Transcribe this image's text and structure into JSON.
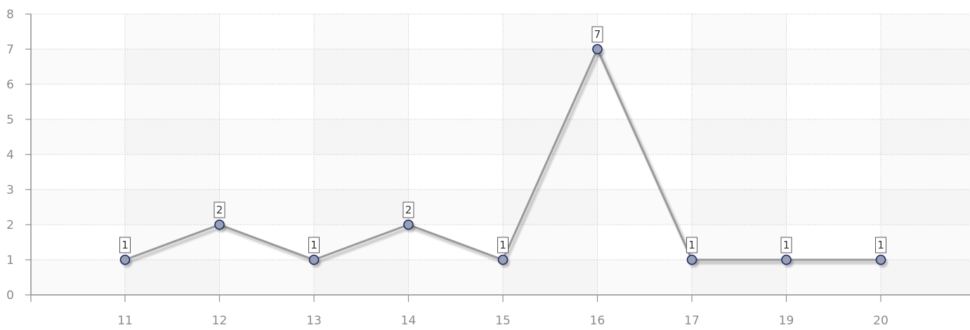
{
  "chart_data": {
    "type": "line",
    "categories": [
      "11",
      "12",
      "13",
      "14",
      "15",
      "16",
      "17",
      "19",
      "20"
    ],
    "series": [
      {
        "values": [
          1,
          2,
          1,
          2,
          1,
          7,
          1,
          1,
          1
        ],
        "color": "#9a9a9a"
      }
    ],
    "data_labels": true,
    "ylim": [
      0,
      8
    ],
    "yticks": [
      0,
      1,
      2,
      3,
      4,
      5,
      6,
      7,
      8
    ],
    "grid": true,
    "legend": "none",
    "colors": {
      "line": "#9a9a9a",
      "marker_fill": "#9aa0b4",
      "marker_stroke": "#1c2a6b",
      "grid": "#c8c8c8",
      "axis": "#8f8f8f",
      "band_light": "#fafafa",
      "band_dark": "#f3f3f3",
      "label_border": "#555555"
    }
  }
}
